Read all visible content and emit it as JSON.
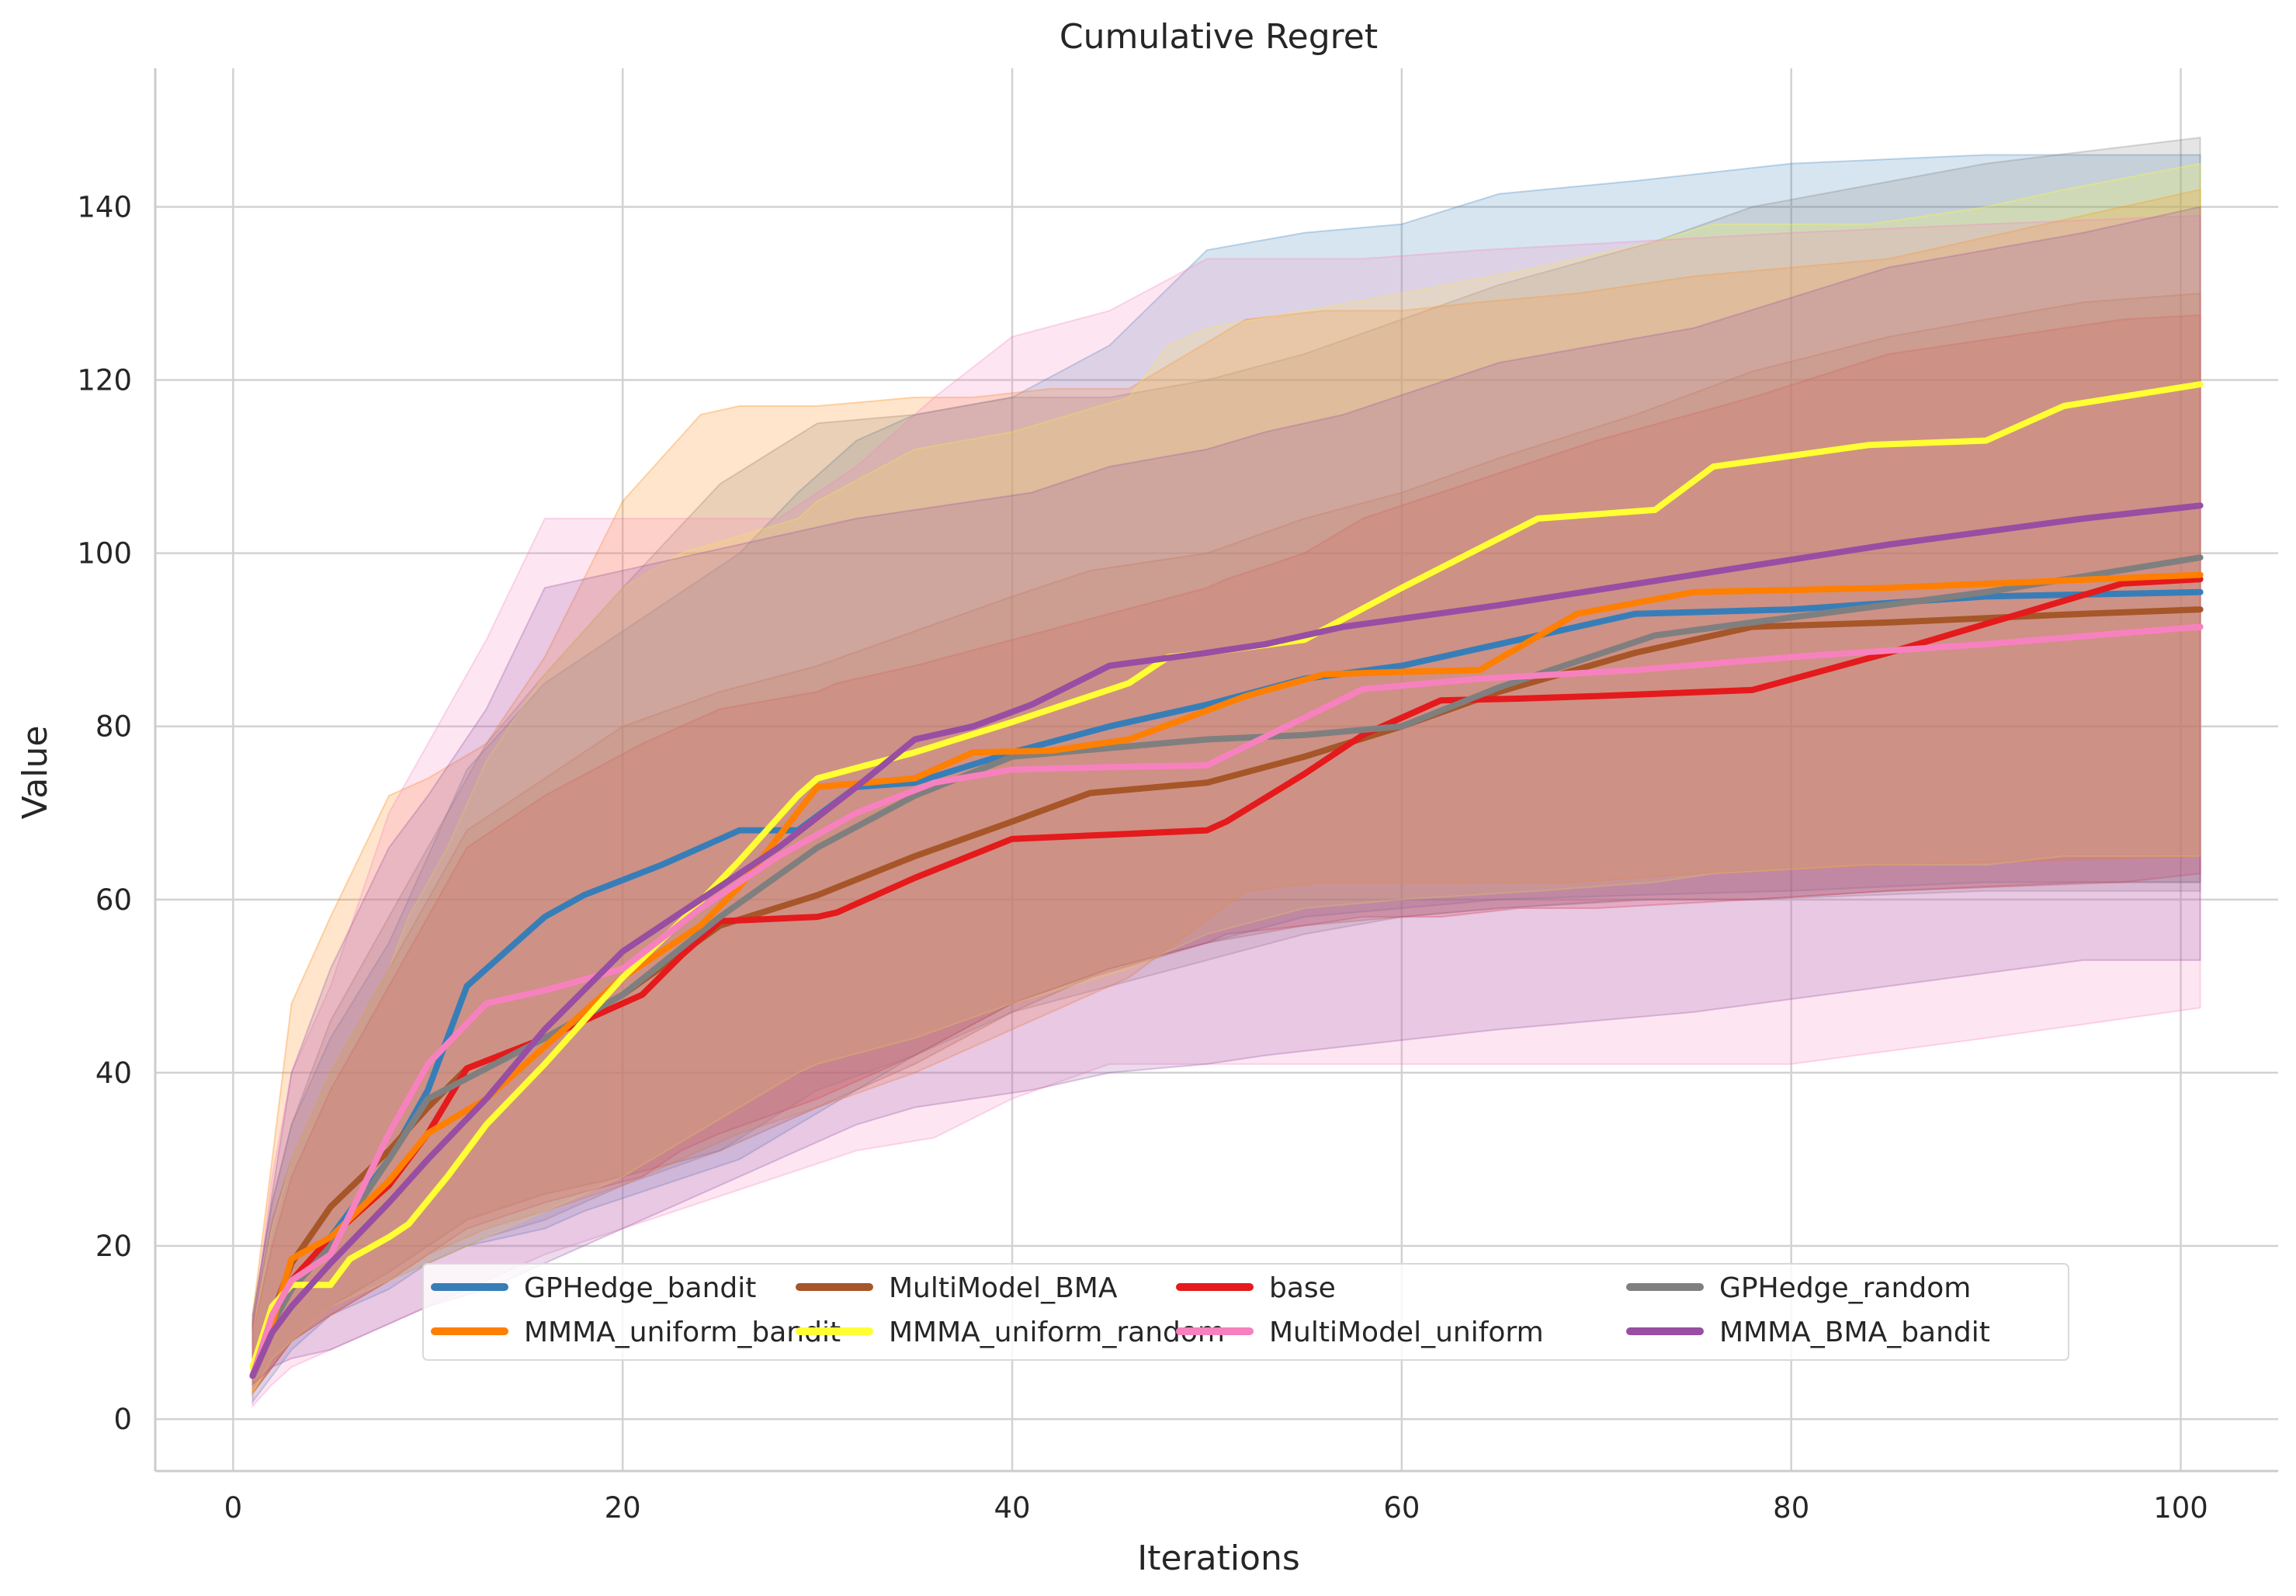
{
  "chart_data": {
    "type": "line",
    "title": "Cumulative Regret",
    "xlabel": "Iterations",
    "ylabel": "Value",
    "xlim": [
      -4,
      105
    ],
    "ylim": [
      -6,
      156
    ],
    "xticks": [
      0,
      20,
      40,
      60,
      80,
      100
    ],
    "yticks": [
      0,
      20,
      40,
      60,
      80,
      100,
      120,
      140
    ],
    "grid": true,
    "shaded_band": "min-max range per series",
    "legend": {
      "placement": "lower-center",
      "columns": 4
    },
    "series": [
      {
        "name": "GPHedge_bandit",
        "color": "#377eb8",
        "x": [
          1,
          2,
          3,
          5,
          8,
          10,
          12,
          16,
          18,
          22,
          26,
          29,
          32,
          35,
          40,
          45,
          50,
          55,
          60,
          65,
          72,
          80,
          90,
          101
        ],
        "mean": [
          5,
          11,
          15,
          21,
          30,
          38,
          50,
          58,
          60.5,
          64,
          68,
          68,
          73,
          73.5,
          77,
          80,
          82.5,
          85.5,
          87,
          89.5,
          93,
          93.5,
          95,
          95.5
        ],
        "upper": [
          12,
          25,
          34,
          44,
          55,
          65,
          75,
          85,
          88,
          94,
          100,
          107,
          113,
          116,
          118,
          124,
          135,
          137,
          138,
          141.5,
          143,
          145,
          146,
          146
        ],
        "lower": [
          2,
          5,
          8,
          12,
          15,
          18,
          20,
          22,
          24,
          27,
          30,
          34,
          38,
          42,
          48,
          52,
          55,
          58,
          59,
          60,
          60.5,
          61,
          62,
          62
        ]
      },
      {
        "name": "MultiModel_BMA",
        "color": "#a65628",
        "x": [
          1,
          2,
          3,
          5,
          8,
          10,
          12,
          16,
          20,
          25,
          30,
          35,
          40,
          44,
          50,
          55,
          60,
          65,
          72,
          78,
          85,
          95,
          101
        ],
        "mean": [
          5,
          12,
          18,
          24.5,
          31,
          36,
          40.5,
          44,
          49,
          57,
          60.5,
          65,
          69,
          72.3,
          73.5,
          76.5,
          80,
          84,
          88.5,
          91.5,
          92,
          93,
          93.5
        ],
        "upper": [
          11,
          23,
          30,
          40,
          52,
          60,
          68,
          74,
          80,
          84,
          87,
          91,
          95,
          98,
          100,
          104,
          107,
          111,
          116,
          121,
          125,
          129,
          130
        ],
        "lower": [
          3,
          6,
          9,
          13,
          17,
          20,
          23,
          26,
          28,
          31,
          36,
          41,
          47,
          51,
          55,
          57,
          58,
          59,
          60,
          60,
          61,
          62,
          62
        ]
      },
      {
        "name": "base",
        "color": "#e41a1c",
        "x": [
          1,
          2,
          3,
          5,
          8,
          10,
          12,
          16,
          21,
          23,
          25,
          30,
          31,
          35,
          40,
          45,
          50,
          51,
          55,
          58,
          62,
          66,
          70,
          78,
          85,
          97,
          101
        ],
        "mean": [
          5,
          11,
          16,
          21,
          27,
          33,
          40.5,
          44,
          49,
          53.5,
          57.5,
          58,
          58.5,
          62.5,
          67,
          67.5,
          68,
          69,
          74.5,
          79,
          83,
          83.2,
          83.5,
          84.2,
          88.5,
          96.5,
          97
        ],
        "upper": [
          10,
          20,
          28,
          38,
          50,
          58,
          66,
          72,
          78,
          80,
          82,
          84,
          85,
          87,
          90,
          93,
          96,
          97,
          100,
          104,
          107,
          110,
          113,
          118,
          123,
          127,
          127.5
        ],
        "lower": [
          3,
          6,
          9,
          12,
          16,
          19,
          22,
          25,
          28,
          31,
          33,
          37,
          38,
          42,
          48,
          52,
          55,
          56,
          57,
          58,
          58,
          59,
          59,
          60,
          61,
          62,
          63
        ]
      },
      {
        "name": "GPHedge_random",
        "color": "#7f7f7f",
        "x": [
          1,
          2,
          3,
          5,
          8,
          10,
          13,
          16,
          20,
          25,
          30,
          35,
          40,
          45,
          50,
          55,
          60,
          65,
          73,
          78,
          90,
          101
        ],
        "mean": [
          5,
          11,
          15,
          20,
          30,
          37,
          40.5,
          44,
          49,
          58,
          66,
          72,
          76.5,
          77.5,
          78.5,
          79,
          80,
          84.5,
          90.5,
          92,
          95.5,
          99.5
        ],
        "upper": [
          12,
          25,
          34,
          46,
          58,
          66,
          78,
          86,
          96,
          108,
          115,
          116,
          118,
          118,
          120,
          123,
          127,
          131,
          136,
          140,
          145,
          148
        ],
        "lower": [
          3,
          6,
          9,
          12,
          16,
          18,
          21,
          23,
          27,
          31,
          38,
          42,
          47,
          50,
          53,
          56,
          58,
          59,
          60,
          60,
          61,
          61
        ]
      },
      {
        "name": "MMMA_uniform_bandit",
        "color": "#ff7f00",
        "x": [
          1,
          2,
          3,
          5,
          8,
          10,
          13,
          16,
          20,
          24,
          26,
          30,
          35,
          38,
          42,
          46,
          52,
          56,
          60,
          64,
          69,
          75,
          85,
          101
        ],
        "mean": [
          5,
          11,
          18.5,
          21,
          27.5,
          33,
          37,
          43,
          51,
          57,
          61.5,
          73,
          74,
          77,
          77.2,
          78.5,
          83.5,
          86,
          86.3,
          86.5,
          93,
          95.5,
          96,
          97.5
        ],
        "upper": [
          12,
          30,
          48,
          58,
          72,
          74,
          78,
          88,
          106,
          116,
          117,
          117,
          118,
          118,
          119,
          119,
          127,
          128,
          128,
          129,
          130,
          132,
          134,
          142
        ],
        "lower": [
          3,
          6,
          9,
          12,
          16,
          19,
          22,
          24,
          27,
          31,
          33,
          36,
          40,
          43,
          47,
          51,
          61,
          62,
          62,
          62,
          62,
          63,
          64,
          65
        ]
      },
      {
        "name": "MMMA_uniform_random",
        "color": "#ffff33",
        "x": [
          1,
          2,
          3,
          5,
          6,
          8,
          9,
          11,
          13,
          16,
          20,
          23,
          26,
          29,
          30,
          35,
          40,
          46,
          48,
          50,
          55,
          60,
          67,
          73,
          76,
          84,
          90,
          94,
          101
        ],
        "mean": [
          6,
          13,
          15.5,
          15.5,
          18.5,
          21,
          22.5,
          28,
          34,
          41,
          51,
          57.5,
          64.5,
          72,
          74,
          77,
          80.5,
          85,
          88,
          88.5,
          90,
          96,
          104,
          105,
          110,
          112.5,
          113,
          117,
          119.5
        ],
        "upper": [
          10,
          22,
          30,
          40,
          44,
          52,
          58,
          66,
          76,
          86,
          96,
          100,
          102,
          104,
          106,
          112,
          114,
          118,
          124,
          126,
          128,
          130,
          133,
          136,
          138,
          138,
          140,
          142,
          145
        ],
        "lower": [
          3,
          7,
          9,
          13,
          14,
          16,
          17,
          19,
          21,
          24,
          28,
          32,
          36,
          40,
          41,
          44,
          48,
          52,
          54,
          56,
          59,
          60,
          61,
          62,
          63,
          64,
          64,
          65,
          65
        ]
      },
      {
        "name": "MultiModel_uniform",
        "color": "#f781bf",
        "x": [
          1,
          2,
          3,
          5,
          8,
          10,
          13,
          16,
          20,
          24,
          28,
          32,
          36,
          40,
          45,
          50,
          55,
          58,
          64,
          72,
          80,
          90,
          101
        ],
        "mean": [
          5,
          12,
          16,
          19,
          33,
          41,
          48,
          49.5,
          52,
          59,
          65,
          70,
          73.5,
          75,
          75.3,
          75.5,
          81,
          84.3,
          85.5,
          86.5,
          88,
          89.5,
          91.5
        ],
        "upper": [
          10,
          28,
          40,
          50,
          70,
          78,
          90,
          104,
          104,
          104,
          104,
          110,
          118,
          125,
          128,
          134,
          134,
          134,
          135,
          136,
          137,
          138,
          139
        ],
        "lower": [
          1.5,
          4,
          6,
          8,
          11,
          13,
          16,
          19,
          22,
          25,
          28,
          31,
          32.5,
          37,
          41,
          41,
          41,
          41,
          41,
          41,
          41,
          44,
          47.5
        ]
      },
      {
        "name": "MMMA_BMA_bandit",
        "color": "#984ea3",
        "x": [
          1,
          2,
          3,
          5,
          8,
          10,
          13,
          16,
          20,
          24,
          28,
          32,
          35,
          38,
          41,
          45,
          50,
          53,
          57,
          65,
          75,
          85,
          95,
          101
        ],
        "mean": [
          5,
          10,
          13,
          18,
          25,
          30,
          37,
          45,
          54,
          60,
          66,
          73,
          78.5,
          80,
          82.5,
          87,
          88.5,
          89.5,
          91.5,
          94,
          97.5,
          101,
          104,
          105.5
        ],
        "upper": [
          11,
          26,
          40,
          52,
          66,
          72,
          82,
          96,
          98,
          100,
          102,
          104,
          105,
          106,
          107,
          110,
          112,
          114,
          116,
          122,
          126,
          133,
          137,
          140
        ],
        "lower": [
          4,
          6,
          7,
          8,
          11,
          13,
          15,
          18,
          22,
          26,
          30,
          34,
          36,
          37,
          38,
          40,
          41,
          42,
          43,
          45,
          47,
          50,
          53,
          53
        ]
      }
    ]
  }
}
